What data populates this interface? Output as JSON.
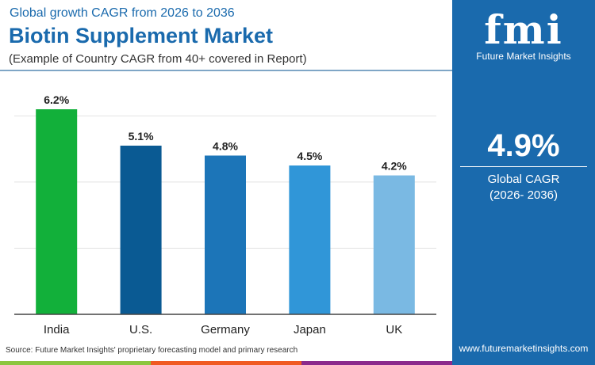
{
  "header": {
    "subtitle": "Global growth CAGR from 2026 to 2036",
    "title": "Biotin Supplement Market",
    "note": "(Example of Country CAGR from 40+ covered in Report)"
  },
  "panel": {
    "logo_text": "fmi",
    "brand": "Future Market Insights",
    "value": "4.9%",
    "label1": "Global CAGR",
    "label2": "(2026- 2036)",
    "url": "www.futuremarketinsights.com",
    "color": "#1a6aad"
  },
  "source": "Source: Future Market Insights' proprietary forecasting model and primary research",
  "chart_data": {
    "type": "bar",
    "categories": [
      "India",
      "U.S.",
      "Germany",
      "Japan",
      "UK"
    ],
    "values": [
      6.2,
      5.1,
      4.8,
      4.5,
      4.2
    ],
    "labels": [
      "6.2%",
      "5.1%",
      "4.8%",
      "4.5%",
      "4.2%"
    ],
    "colors": [
      "#12b03a",
      "#0a5a93",
      "#1c75b8",
      "#3096d8",
      "#7ab9e3"
    ],
    "ylim": [
      0,
      6.2
    ],
    "grid": true,
    "gridlines": [
      2,
      4,
      6
    ]
  }
}
